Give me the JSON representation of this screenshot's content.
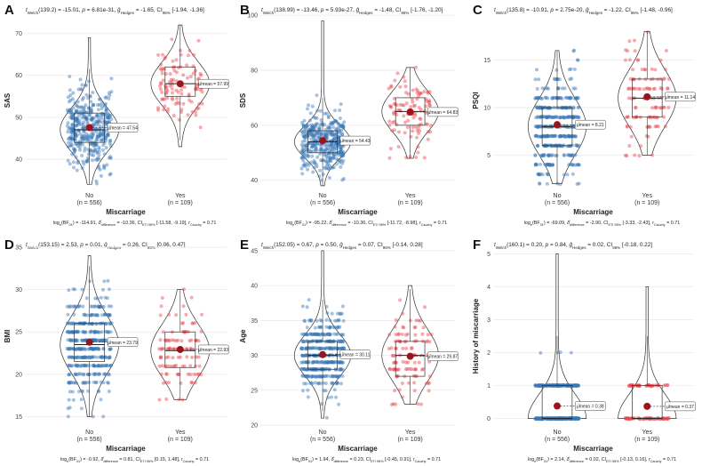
{
  "chart_data": [
    {
      "letter": "A",
      "type": "violin-box-strip",
      "ylabel": "SAS",
      "xlabel": "Miscarriage",
      "stats_top": "t_Welch(139.2) = -15.01, p = 6.81e-31, g_Hedges = -1.65, CI95% [-1.94, -1.36]",
      "stats_bottom": "log_e(BF01) = -114.91, δ_difference = -10.36, CI_ETI95% [-11.58, -9.19], r_Cauchy = 0.71",
      "ylim": [
        33,
        75
      ],
      "yticks": [
        40,
        50,
        60,
        70
      ],
      "groups": [
        {
          "name": "No",
          "n": 556,
          "n_label": "(n = 556)",
          "mean": 47.54,
          "mean_label": "μ̂mean = 47.54",
          "q1": 44,
          "median": 47,
          "q3": 51,
          "min": 34,
          "max": 69,
          "color": "#3a78b5"
        },
        {
          "name": "Yes",
          "n": 109,
          "n_label": "(n = 109)",
          "mean": 57.99,
          "mean_label": "μ̂mean = 57.99",
          "q1": 55,
          "median": 58,
          "q3": 62,
          "min": 43,
          "max": 72,
          "color": "#e8444e"
        }
      ]
    },
    {
      "letter": "B",
      "type": "violin-box-strip",
      "ylabel": "SDS",
      "xlabel": "Miscarriage",
      "stats_top": "t_Welch(138.99) = -13.46, p = 5.93e-27, g_Hedges = -1.48, CI95% [-1.76, -1.20]",
      "stats_bottom": "log_e(BF01) = -95.22, δ_difference = -10.36, CI_ETI95% [-11.72, -8.98], r_Cauchy = 0.71",
      "ylim": [
        37,
        101
      ],
      "yticks": [
        40,
        60,
        80,
        100
      ],
      "groups": [
        {
          "name": "No",
          "n": 556,
          "n_label": "(n = 556)",
          "mean": 54.43,
          "mean_label": "μ̂mean = 54.43",
          "q1": 50,
          "median": 54,
          "q3": 58,
          "min": 38,
          "max": 98,
          "color": "#3a78b5"
        },
        {
          "name": "Yes",
          "n": 109,
          "n_label": "(n = 109)",
          "mean": 64.83,
          "mean_label": "μ̂mean = 64.83",
          "q1": 60,
          "median": 65,
          "q3": 70,
          "min": 48,
          "max": 81,
          "color": "#e8444e"
        }
      ]
    },
    {
      "letter": "C",
      "type": "violin-box-strip",
      "ylabel": "PSQI",
      "xlabel": "Miscarriage",
      "stats_top": "t_Welch(135.8) = -10.91, p = 2.75e-20, g_Hedges = -1.22, CI95% [-1.48, -0.96]",
      "stats_bottom": "log_e(BF01) = -69.09, δ_difference = -2.90, CI_ETI95% [-3.33, -2.43], r_Cauchy = 0.71",
      "ylim": [
        1.5,
        20
      ],
      "yticks": [
        5,
        10,
        15
      ],
      "groups": [
        {
          "name": "No",
          "n": 556,
          "n_label": "(n = 556)",
          "mean": 8.21,
          "mean_label": "μ̂mean = 8.21",
          "q1": 6,
          "median": 8,
          "q3": 10,
          "min": 2,
          "max": 16,
          "color": "#3a78b5"
        },
        {
          "name": "Yes",
          "n": 109,
          "n_label": "(n = 109)",
          "mean": 11.14,
          "mean_label": "μ̂mean = 11.14",
          "q1": 9,
          "median": 11,
          "q3": 13,
          "min": 5,
          "max": 18,
          "color": "#e8444e"
        }
      ]
    },
    {
      "letter": "D",
      "type": "violin-box-strip",
      "ylabel": "BMI",
      "xlabel": "Miscarriage",
      "stats_top": "t_Welch(153.15) = 2.53, p = 0.01, g_Hedges = 0.26, CI95% [0.06, 0.47]",
      "stats_bottom": "log_e(BF01) = -0.92, δ_difference = 0.81, CI_ETI95% [0.15, 1.48], r_Cauchy = 0.71",
      "ylim": [
        14,
        35
      ],
      "yticks": [
        15,
        20,
        25,
        30,
        35
      ],
      "groups": [
        {
          "name": "No",
          "n": 556,
          "n_label": "(n = 556)",
          "mean": 23.79,
          "mean_label": "μ̂mean = 23.79",
          "q1": 21.5,
          "median": 23.5,
          "q3": 26,
          "min": 15,
          "max": 34,
          "color": "#3a78b5"
        },
        {
          "name": "Yes",
          "n": 109,
          "n_label": "(n = 109)",
          "mean": 22.93,
          "mean_label": "μ̂mean = 22.93",
          "q1": 20.8,
          "median": 22.8,
          "q3": 25,
          "min": 17,
          "max": 30,
          "color": "#e8444e"
        }
      ]
    },
    {
      "letter": "E",
      "type": "violin-box-strip",
      "ylabel": "Age",
      "xlabel": "Miscarriage",
      "stats_top": "t_Welch(152.05) = 0.67, p = 0.50, g_Hedges = 0.07, CI95% [-0.14, 0.28]",
      "stats_bottom": "log_e(BF01) = 1.94, δ_difference = 0.23, CI_ETI95% [-0.45, 0.91], r_Cauchy = 0.71",
      "ylim": [
        20,
        45.5
      ],
      "yticks": [
        20,
        25,
        30,
        35,
        40,
        45
      ],
      "groups": [
        {
          "name": "No",
          "n": 556,
          "n_label": "(n = 556)",
          "mean": 30.11,
          "mean_label": "μ̂mean = 30.11",
          "q1": 28,
          "median": 30,
          "q3": 32,
          "min": 21,
          "max": 45,
          "color": "#3a78b5"
        },
        {
          "name": "Yes",
          "n": 109,
          "n_label": "(n = 109)",
          "mean": 29.87,
          "mean_label": "μ̂mean = 29.87",
          "q1": 27,
          "median": 30,
          "q3": 32,
          "min": 23,
          "max": 40,
          "color": "#e8444e"
        }
      ]
    },
    {
      "letter": "F",
      "type": "violin-box-strip",
      "ylabel": "History of miscarriage",
      "xlabel": "Miscarriage",
      "stats_top": "t_Welch(160.1) = 0.20, p = 0.84, g_Hedges = 0.02, CI95% [-0.18, 0.22]",
      "stats_bottom": "log_e(BF01) = 2.14, δ_difference = 0.02, CI_ETI95% [-0.13, 0.16], r_Cauchy = 0.71",
      "ylim": [
        -0.2,
        5.2
      ],
      "yticks": [
        0,
        1,
        2,
        3,
        4,
        5
      ],
      "groups": [
        {
          "name": "No",
          "n": 556,
          "n_label": "(n = 556)",
          "mean": 0.38,
          "mean_label": "μ̂mean = 0.38",
          "q1": 0,
          "median": 0,
          "q3": 1,
          "min": 0,
          "max": 5,
          "color": "#3a78b5"
        },
        {
          "name": "Yes",
          "n": 109,
          "n_label": "(n = 109)",
          "mean": 0.37,
          "mean_label": "μ̂mean = 0.37",
          "q1": 0,
          "median": 0,
          "q3": 1,
          "min": 0,
          "max": 4,
          "color": "#e8444e"
        }
      ]
    }
  ]
}
